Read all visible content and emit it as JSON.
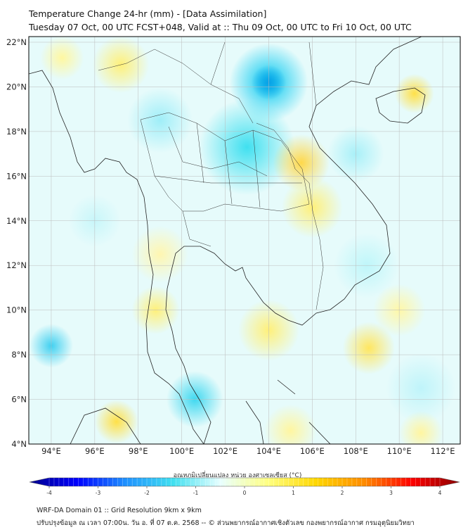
{
  "header": {
    "title": "Temperature Change 24-hr (mm) - [Data Assimilation]",
    "subtitle": "Tuesday 07 Oct, 00 UTC FCST+048, Valid at :: Thu 09 Oct, 00 UTC to Fri 10 Oct, 00 UTC"
  },
  "map": {
    "lon_labels": [
      "94°E",
      "96°E",
      "98°E",
      "100°E",
      "102°E",
      "104°E",
      "106°E",
      "108°E",
      "110°E",
      "112°E"
    ],
    "lat_labels": [
      "22°N",
      "20°N",
      "18°N",
      "16°N",
      "14°N",
      "12°N",
      "10°N",
      "8°N",
      "6°N",
      "4°N"
    ],
    "lon_range": [
      93,
      112.8
    ],
    "lat_range": [
      4,
      22.25
    ]
  },
  "colorbar": {
    "title": "อุณหภูมิเปลี่ยนแปลง หน่วย องศาเซลเซียส (°C)",
    "ticks": [
      "-4",
      "-3",
      "-2",
      "-1",
      "0",
      "1",
      "2",
      "3",
      "4"
    ],
    "colors": [
      "#00008b",
      "#0000ff",
      "#1e90ff",
      "#40e0f0",
      "#e8ffff",
      "#ffff80",
      "#ffd700",
      "#ff8c00",
      "#ff0000",
      "#8b0000"
    ]
  },
  "footer": {
    "line1": "WRF-DA Domain 01 :: Grid Resolution 9km x 9km",
    "line2": "ปรับปรุงข้อมูล ณ เวลา 07:00น. วัน อ. ที่ 07 ต.ค. 2568 -- © ส่วนพยากรณ์อากาศเชิงตัวเลข กองพยากรณ์อากาศ กรมอุตุนิยมวิทยา"
  }
}
